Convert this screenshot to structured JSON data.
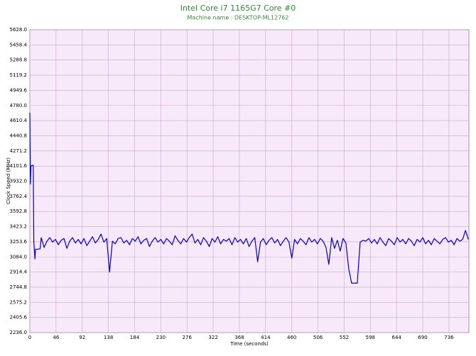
{
  "chart_data": {
    "type": "line",
    "title": "Intel Core i7 1165G7 Core #0",
    "subtitle": "Machine name : DESKTOP-ML12762",
    "x_label": "Time (seconds)",
    "y_label": "Clock Speed (MHz)",
    "grid": true,
    "xlim": [
      0,
      771
    ],
    "xticks": [
      0,
      46,
      92,
      138,
      184,
      230,
      276,
      322,
      368,
      414,
      460,
      506,
      552,
      598,
      644,
      690,
      736
    ],
    "ylim": [
      2236,
      5628
    ],
    "yticks": [
      {
        "value": 2236,
        "label": "2236.0"
      },
      2405.6,
      2575.2,
      2744.8,
      2914.4,
      {
        "value": 3084,
        "label": "3084.0"
      },
      3253.6,
      3423.2,
      3592.8,
      3762.4,
      {
        "value": 3932,
        "label": "3932.0"
      },
      4101.6,
      4271.2,
      4440.8,
      4610.4,
      {
        "value": 4780,
        "label": "4780.0"
      },
      4949.6,
      5119.2,
      5288.8,
      5458.4,
      {
        "value": 5628,
        "label": "5628.0"
      }
    ],
    "x": [
      0,
      1,
      2,
      4,
      6,
      7,
      8,
      9,
      10,
      14,
      18,
      20,
      25,
      30,
      35,
      40,
      45,
      50,
      55,
      60,
      65,
      70,
      75,
      80,
      85,
      90,
      95,
      100,
      105,
      110,
      115,
      120,
      125,
      130,
      135,
      140,
      145,
      150,
      155,
      160,
      165,
      170,
      175,
      180,
      185,
      190,
      195,
      200,
      205,
      210,
      215,
      220,
      225,
      230,
      235,
      240,
      245,
      250,
      255,
      260,
      265,
      270,
      275,
      280,
      285,
      290,
      295,
      300,
      305,
      310,
      315,
      320,
      325,
      330,
      335,
      340,
      345,
      350,
      355,
      360,
      365,
      370,
      375,
      380,
      385,
      390,
      395,
      400,
      405,
      410,
      415,
      420,
      425,
      430,
      435,
      440,
      445,
      450,
      455,
      460,
      465,
      470,
      475,
      480,
      485,
      490,
      495,
      500,
      505,
      510,
      515,
      520,
      525,
      530,
      535,
      540,
      545,
      550,
      555,
      560,
      565,
      570,
      575,
      580,
      585,
      590,
      595,
      600,
      605,
      610,
      615,
      620,
      625,
      630,
      635,
      640,
      645,
      650,
      655,
      660,
      665,
      670,
      675,
      680,
      685,
      690,
      695,
      700,
      705,
      710,
      715,
      720,
      725,
      730,
      735,
      740,
      745,
      750,
      755,
      760,
      765,
      770
    ],
    "series": [
      {
        "color": "#0000cc",
        "values": [
          4700,
          3900,
          4100,
          4110,
          4110,
          3250,
          3150,
          3060,
          3170,
          3170,
          3175,
          3300,
          3190,
          3260,
          3300,
          3250,
          3280,
          3220,
          3270,
          3290,
          3180,
          3260,
          3300,
          3240,
          3280,
          3230,
          3290,
          3210,
          3260,
          3310,
          3240,
          3280,
          3340,
          3250,
          3290,
          2914,
          3260,
          3230,
          3290,
          3300,
          3240,
          3270,
          3220,
          3290,
          3260,
          3310,
          3230,
          3270,
          3290,
          3200,
          3260,
          3300,
          3250,
          3280,
          3230,
          3290,
          3260,
          3220,
          3320,
          3270,
          3230,
          3290,
          3250,
          3300,
          3340,
          3240,
          3280,
          3220,
          3300,
          3260,
          3200,
          3290,
          3250,
          3310,
          3230,
          3280,
          3260,
          3290,
          3220,
          3300,
          3250,
          3280,
          3230,
          3290,
          3200,
          3260,
          3300,
          3030,
          3250,
          3290,
          3220,
          3270,
          3300,
          3240,
          3280,
          3210,
          3260,
          3300,
          3250,
          3070,
          3280,
          3230,
          3290,
          3260,
          3220,
          3300,
          3250,
          3280,
          3230,
          3290,
          3260,
          3190,
          3000,
          3300,
          3180,
          3270,
          3150,
          3290,
          3240,
          2950,
          2790,
          2790,
          2790,
          3250,
          3270,
          3260,
          3290,
          3240,
          3280,
          3230,
          3300,
          3250,
          3210,
          3290,
          3260,
          3220,
          3300,
          3250,
          3280,
          3230,
          3290,
          3260,
          3210,
          3280,
          3250,
          3300,
          3230,
          3270,
          3220,
          3290,
          3260,
          3230,
          3280,
          3300,
          3250,
          3270,
          3220,
          3290,
          3260,
          3280,
          3380,
          3280
        ]
      }
    ]
  }
}
